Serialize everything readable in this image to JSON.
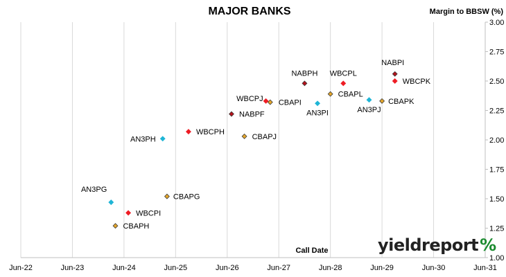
{
  "chart_data": {
    "type": "scatter",
    "title": "MAJOR BANKS",
    "xlabel": "Call Date",
    "ylabel": "Margin to BBSW (%)",
    "x_ticks": [
      "Jun-22",
      "Jun-23",
      "Jun-24",
      "Jun-25",
      "Jun-26",
      "Jun-27",
      "Jun-28",
      "Jun-29",
      "Jun-30",
      "Jun-31"
    ],
    "xlim": [
      "2022-06",
      "2031-06"
    ],
    "ylim": [
      1.0,
      3.0
    ],
    "y_ticks": [
      "1.00",
      "1.25",
      "1.50",
      "1.75",
      "2.00",
      "2.25",
      "2.50",
      "2.75",
      "3.00"
    ],
    "y_axis_side": "right",
    "grid": "vertical",
    "colors": {
      "ANZ": "#1fb5d6",
      "WBC": "#ee1c24",
      "CBA": "#e5a62a",
      "NAB": "#b5121b"
    },
    "points": [
      {
        "label": "AN3PG",
        "bank": "ANZ",
        "x": "2024-03",
        "y": 1.47
      },
      {
        "label": "WBCPI",
        "bank": "WBC",
        "x": "2024-07",
        "y": 1.38
      },
      {
        "label": "CBAPH",
        "bank": "CBA",
        "x": "2024-04",
        "y": 1.27
      },
      {
        "label": "CBAPG",
        "bank": "CBA",
        "x": "2025-04",
        "y": 1.52
      },
      {
        "label": "AN3PH",
        "bank": "ANZ",
        "x": "2025-03",
        "y": 2.01
      },
      {
        "label": "WBCPH",
        "bank": "WBC",
        "x": "2025-09",
        "y": 2.07
      },
      {
        "label": "CBAPJ",
        "bank": "CBA",
        "x": "2026-10",
        "y": 2.03
      },
      {
        "label": "NABPF",
        "bank": "NAB",
        "x": "2026-07",
        "y": 2.22
      },
      {
        "label": "WBCPJ",
        "bank": "WBC",
        "x": "2027-03",
        "y": 2.33
      },
      {
        "label": "CBAPI",
        "bank": "CBA",
        "x": "2027-04",
        "y": 2.32
      },
      {
        "label": "NABPH",
        "bank": "NAB",
        "x": "2027-12",
        "y": 2.48
      },
      {
        "label": "AN3PI",
        "bank": "ANZ",
        "x": "2028-03",
        "y": 2.31
      },
      {
        "label": "CBAPL",
        "bank": "CBA",
        "x": "2028-06",
        "y": 2.39
      },
      {
        "label": "WBCPL",
        "bank": "WBC",
        "x": "2028-09",
        "y": 2.48
      },
      {
        "label": "AN3PJ",
        "bank": "ANZ",
        "x": "2029-03",
        "y": 2.34
      },
      {
        "label": "CBAPK",
        "bank": "CBA",
        "x": "2029-06",
        "y": 2.33
      },
      {
        "label": "NABPI",
        "bank": "NAB",
        "x": "2029-09",
        "y": 2.56
      },
      {
        "label": "WBCPK",
        "bank": "WBC",
        "x": "2029-09",
        "y": 2.5
      }
    ]
  },
  "branding": {
    "text": "yieldreport",
    "symbol": "%"
  }
}
